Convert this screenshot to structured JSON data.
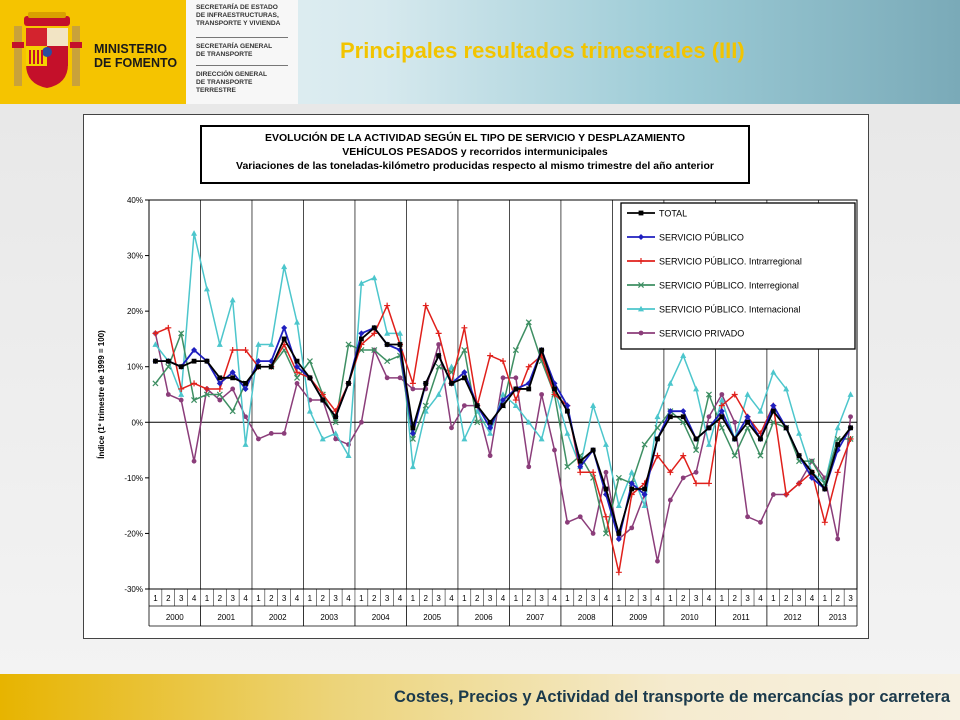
{
  "header": {
    "ministry": "MINISTERIO\nDE FOMENTO",
    "dept1": "SECRETARÍA DE ESTADO\nDE INFRAESTRUCTURAS,\nTRANSPORTE Y VIVIENDA",
    "dept2": "SECRETARÍA GENERAL\nDE TRANSPORTE",
    "dept3": "DIRECCIÓN GENERAL\nDE TRANSPORTE\nTERRESTRE",
    "page_title": "Principales resultados trimestrales (III)"
  },
  "footer": {
    "text": "Costes, Precios y Actividad del transporte de mercancías por carretera"
  },
  "chart_data": {
    "type": "line",
    "title": [
      "EVOLUCIÓN DE LA ACTIVIDAD SEGÚN EL TIPO DE SERVICIO Y DESPLAZAMIENTO",
      "VEHÍCULOS PESADOS y recorridos intermunicipales",
      "Variaciones de las toneladas-kilómetro producidas respecto al mismo trimestre del año anterior"
    ],
    "ylabel": "Índice (1º trimestre de 1999 = 100)",
    "ylim": [
      -30,
      40
    ],
    "yticks": [
      -30,
      -20,
      -10,
      0,
      10,
      20,
      30,
      40
    ],
    "ytick_labels": [
      "-30%",
      "-20%",
      "-10%",
      "0%",
      "10%",
      "20%",
      "30%",
      "40%"
    ],
    "grid": "vertical lines at year boundaries",
    "legend_position": "top-right",
    "quarters": [
      "1",
      "2",
      "3",
      "4",
      "1",
      "2",
      "3",
      "4",
      "1",
      "2",
      "3",
      "4",
      "1",
      "2",
      "3",
      "4",
      "1",
      "2",
      "3",
      "4",
      "1",
      "2",
      "3",
      "4",
      "1",
      "2",
      "3",
      "4",
      "1",
      "2",
      "3",
      "4",
      "1",
      "2",
      "3",
      "4",
      "1",
      "2",
      "3",
      "4",
      "1",
      "2",
      "3",
      "4",
      "1",
      "2",
      "3",
      "4",
      "1",
      "2",
      "3",
      "4",
      "1",
      "2",
      "3"
    ],
    "years": [
      {
        "label": "2000",
        "n": 4
      },
      {
        "label": "2001",
        "n": 4
      },
      {
        "label": "2002",
        "n": 4
      },
      {
        "label": "2003",
        "n": 4
      },
      {
        "label": "2004",
        "n": 4
      },
      {
        "label": "2005",
        "n": 4
      },
      {
        "label": "2006",
        "n": 4
      },
      {
        "label": "2007",
        "n": 4
      },
      {
        "label": "2008",
        "n": 4
      },
      {
        "label": "2009",
        "n": 4
      },
      {
        "label": "2010",
        "n": 4
      },
      {
        "label": "2011",
        "n": 4
      },
      {
        "label": "2012",
        "n": 4
      },
      {
        "label": "2013",
        "n": 3
      }
    ],
    "series": [
      {
        "name": "TOTAL",
        "color": "#000000",
        "marker": "square",
        "values": [
          11,
          11,
          10,
          11,
          11,
          8,
          8,
          7,
          10,
          10,
          15,
          11,
          8,
          4,
          1,
          7,
          15,
          17,
          14,
          14,
          -1,
          7,
          12,
          7,
          8,
          3,
          0,
          3,
          6,
          6,
          13,
          6,
          2,
          -7,
          -5,
          -12,
          -20,
          -12,
          -12,
          -3,
          1,
          1,
          -3,
          -1,
          1,
          -3,
          0,
          -3,
          2,
          -1,
          -6,
          -9,
          -12,
          -4,
          -1
        ]
      },
      {
        "name": "SERVICIO PÚBLICO",
        "color": "#1f1fbf",
        "marker": "diamond",
        "values": [
          11,
          11,
          10,
          13,
          11,
          7,
          9,
          6,
          11,
          11,
          17,
          10,
          8,
          4,
          1,
          7,
          16,
          17,
          14,
          13,
          -2,
          7,
          12,
          7,
          9,
          3,
          -1,
          4,
          6,
          7,
          13,
          7,
          3,
          -8,
          -5,
          -13,
          -21,
          -11,
          -13,
          -3,
          2,
          2,
          -3,
          -1,
          2,
          -3,
          1,
          -3,
          3,
          -1,
          -6,
          -10,
          -12,
          -5,
          -1
        ]
      },
      {
        "name": "SERVICIO PÚBLICO. Intrarregional",
        "color": "#e0201b",
        "marker": "plus",
        "values": [
          16,
          17,
          6,
          7,
          6,
          6,
          13,
          13,
          10,
          10,
          14,
          9,
          8,
          5,
          2,
          7,
          14,
          16,
          21,
          14,
          7,
          21,
          16,
          7,
          17,
          3,
          12,
          11,
          4,
          10,
          12,
          5,
          3,
          -9,
          -9,
          -17,
          -27,
          -13,
          -11,
          -6,
          -9,
          -6,
          -11,
          -11,
          3,
          5,
          1,
          -2,
          3,
          -13,
          -11,
          -9,
          -18,
          -9,
          -3
        ]
      },
      {
        "name": "SERVICIO PÚBLICO. Interregional",
        "color": "#3e8f63",
        "marker": "x",
        "values": [
          7,
          10,
          16,
          4,
          5,
          5,
          2,
          7,
          10,
          10,
          13,
          8,
          11,
          5,
          0,
          14,
          13,
          13,
          11,
          12,
          -3,
          3,
          10,
          9,
          13,
          0,
          0,
          3,
          13,
          18,
          11,
          5,
          -8,
          -6,
          -10,
          -20,
          -10,
          -11,
          -4,
          -1,
          2,
          0,
          -5,
          5,
          -1,
          -6,
          -1,
          -6,
          0,
          -1,
          -7,
          -7,
          -11,
          -3,
          -3
        ]
      },
      {
        "name": "SERVICIO PÚBLICO. Internacional",
        "color": "#4cc6cc",
        "marker": "triangle",
        "values": [
          14,
          11,
          5,
          34,
          24,
          14,
          22,
          -4,
          14,
          14,
          28,
          18,
          2,
          -3,
          -2,
          -6,
          25,
          26,
          16,
          16,
          -8,
          2,
          5,
          10,
          -3,
          2,
          -2,
          5,
          3,
          0,
          -3,
          6,
          -2,
          -8,
          3,
          -4,
          -15,
          -9,
          -15,
          1,
          7,
          12,
          6,
          -4,
          4,
          -3,
          5,
          2,
          9,
          6,
          -2,
          -9,
          -11,
          -1,
          5
        ]
      },
      {
        "name": "SERVICIO PRIVADO",
        "color": "#8b3d7a",
        "marker": "circle",
        "values": [
          16,
          5,
          4,
          -7,
          6,
          4,
          6,
          1,
          -3,
          -2,
          -2,
          7,
          4,
          4,
          -3,
          -4,
          0,
          13,
          8,
          8,
          6,
          6,
          14,
          -1,
          3,
          3,
          -6,
          8,
          8,
          -8,
          5,
          -5,
          -18,
          -17,
          -20,
          -9,
          -21,
          -19,
          -13,
          -25,
          -14,
          -10,
          -9,
          1,
          5,
          0,
          -17,
          -18,
          -13,
          -13,
          -11,
          -7,
          -10,
          -21,
          1
        ]
      }
    ]
  }
}
